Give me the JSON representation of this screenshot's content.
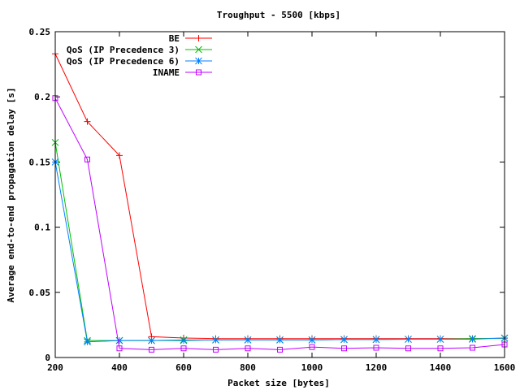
{
  "chart_data": {
    "type": "line",
    "title": "Troughput - 5500 [kbps]",
    "xlabel": "Packet size [bytes]",
    "ylabel": "Average end-to-end propagation delay [s]",
    "xlim": [
      200,
      1600
    ],
    "ylim": [
      0,
      0.25
    ],
    "x_ticks": [
      200,
      400,
      600,
      800,
      1000,
      1200,
      1400,
      1600
    ],
    "x_tick_labels": [
      "200",
      "400",
      "600",
      "800",
      "1000",
      "1200",
      "1400",
      "1600"
    ],
    "y_ticks": [
      0,
      0.05,
      0.1,
      0.15,
      0.2,
      0.25
    ],
    "y_tick_labels": [
      "0",
      "0.05",
      "0.1",
      "0.15",
      "0.2",
      "0.25"
    ],
    "grid": false,
    "legend_position": "top-right",
    "x": [
      200,
      300,
      400,
      500,
      600,
      700,
      800,
      900,
      1000,
      1100,
      1200,
      1300,
      1400,
      1500,
      1600
    ],
    "series": [
      {
        "name": "BE",
        "color": "#ff0000",
        "marker": "plus",
        "values": [
          0.233,
          0.181,
          0.155,
          0.016,
          0.015,
          0.0145,
          0.0145,
          0.0145,
          0.0145,
          0.0145,
          0.0145,
          0.0145,
          0.0145,
          0.0145,
          0.0148
        ]
      },
      {
        "name": "QoS (IP Precedence 3)",
        "color": "#00c000",
        "marker": "cross",
        "values": [
          0.165,
          0.013,
          0.013,
          0.013,
          0.0135,
          0.0135,
          0.0135,
          0.0135,
          0.0135,
          0.0138,
          0.0138,
          0.014,
          0.014,
          0.0145,
          0.0148
        ]
      },
      {
        "name": "QoS (IP Precedence 6)",
        "color": "#0080ff",
        "marker": "star",
        "values": [
          0.15,
          0.012,
          0.013,
          0.013,
          0.013,
          0.0135,
          0.0135,
          0.0135,
          0.0135,
          0.0138,
          0.0138,
          0.014,
          0.014,
          0.014,
          0.015
        ]
      },
      {
        "name": "INAME",
        "color": "#c000ff",
        "marker": "square",
        "values": [
          0.199,
          0.152,
          0.007,
          0.006,
          0.007,
          0.006,
          0.007,
          0.006,
          0.008,
          0.007,
          0.0075,
          0.007,
          0.007,
          0.0075,
          0.01
        ]
      }
    ]
  }
}
